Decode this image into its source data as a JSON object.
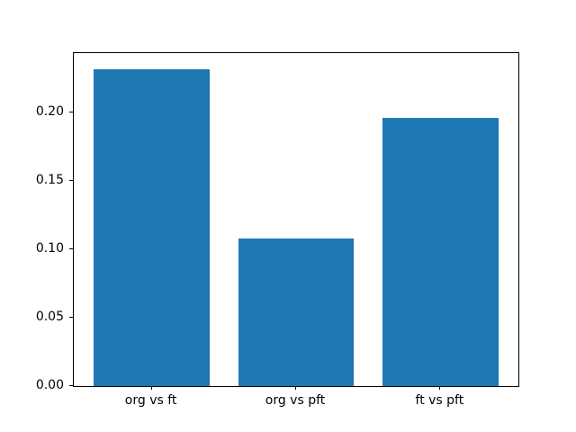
{
  "chart_data": {
    "type": "bar",
    "categories": [
      "org vs ft",
      "org vs pft",
      "ft vs pft"
    ],
    "values": [
      0.232,
      0.108,
      0.196
    ],
    "title": "",
    "xlabel": "",
    "ylabel": "",
    "ylim": [
      0,
      0.2436
    ],
    "yticks": [
      0.0,
      0.05,
      0.1,
      0.15,
      0.2
    ],
    "ytick_labels": [
      "0.00",
      "0.05",
      "0.10",
      "0.15",
      "0.20"
    ],
    "bar_color": "#1f77b4",
    "bar_width_data_units": 0.8,
    "x_data_range": [
      -0.54,
      2.54
    ],
    "grid": false,
    "legend": null
  }
}
